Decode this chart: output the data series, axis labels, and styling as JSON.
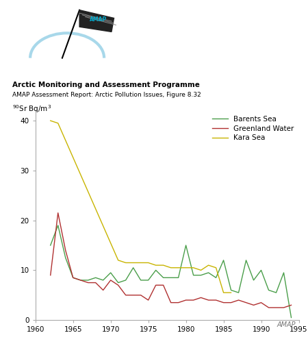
{
  "title_line1": "Arctic Monitoring and Assessment Programme",
  "title_line2": "AMAP Assessment Report: Arctic Pollution Issues, Figure 8.32",
  "ylabel": "$^{90}$Sr Bq/m$^3$",
  "xlim": [
    1960,
    1995
  ],
  "ylim": [
    0,
    42
  ],
  "yticks": [
    0,
    10,
    20,
    30,
    40
  ],
  "xticks": [
    1960,
    1965,
    1970,
    1975,
    1980,
    1985,
    1990,
    1995
  ],
  "barents_sea": {
    "x": [
      1962,
      1963,
      1964,
      1965,
      1966,
      1967,
      1968,
      1969,
      1970,
      1971,
      1972,
      1973,
      1974,
      1975,
      1976,
      1977,
      1978,
      1979,
      1980,
      1981,
      1982,
      1983,
      1984,
      1985,
      1986,
      1987,
      1988,
      1989,
      1990,
      1991,
      1992,
      1993,
      1994
    ],
    "y": [
      15.0,
      19.0,
      12.5,
      8.5,
      8.0,
      8.0,
      8.5,
      8.0,
      9.5,
      7.5,
      8.0,
      10.5,
      8.0,
      8.0,
      10.0,
      8.5,
      8.5,
      8.5,
      15.0,
      9.0,
      9.0,
      9.5,
      8.5,
      12.0,
      6.0,
      5.5,
      12.0,
      8.0,
      10.0,
      6.0,
      5.5,
      9.5,
      0.5
    ],
    "color": "#4a9e4a"
  },
  "greenland_water": {
    "x": [
      1962,
      1963,
      1964,
      1965,
      1966,
      1967,
      1968,
      1969,
      1970,
      1971,
      1972,
      1973,
      1974,
      1975,
      1976,
      1977,
      1978,
      1979,
      1980,
      1981,
      1982,
      1983,
      1984,
      1985,
      1986,
      1987,
      1988,
      1989,
      1990,
      1991,
      1992,
      1993,
      1994
    ],
    "y": [
      9.0,
      21.5,
      14.0,
      8.5,
      8.0,
      7.5,
      7.5,
      6.0,
      8.0,
      7.0,
      5.0,
      5.0,
      5.0,
      4.0,
      7.0,
      7.0,
      3.5,
      3.5,
      4.0,
      4.0,
      4.5,
      4.0,
      4.0,
      3.5,
      3.5,
      4.0,
      3.5,
      3.0,
      3.5,
      2.5,
      2.5,
      2.5,
      3.0
    ],
    "color": "#b03030"
  },
  "kara_sea": {
    "x": [
      1962,
      1963,
      1971,
      1972,
      1973,
      1974,
      1975,
      1976,
      1977,
      1978,
      1979,
      1980,
      1981,
      1982,
      1983,
      1984,
      1985,
      1986
    ],
    "y": [
      40.0,
      39.5,
      12.0,
      11.5,
      11.5,
      11.5,
      11.5,
      11.0,
      11.0,
      10.5,
      10.5,
      10.5,
      10.5,
      10.0,
      11.0,
      10.5,
      5.5,
      5.5
    ],
    "color": "#c8b400"
  },
  "amap_label": "AMAP",
  "legend_entries": [
    "Barents Sea",
    "Greenland Water",
    "Kara Sea"
  ],
  "logo_arc_color": "#a8d8ea",
  "logo_flag_color": "#222222",
  "logo_text_color": "#00aacc"
}
